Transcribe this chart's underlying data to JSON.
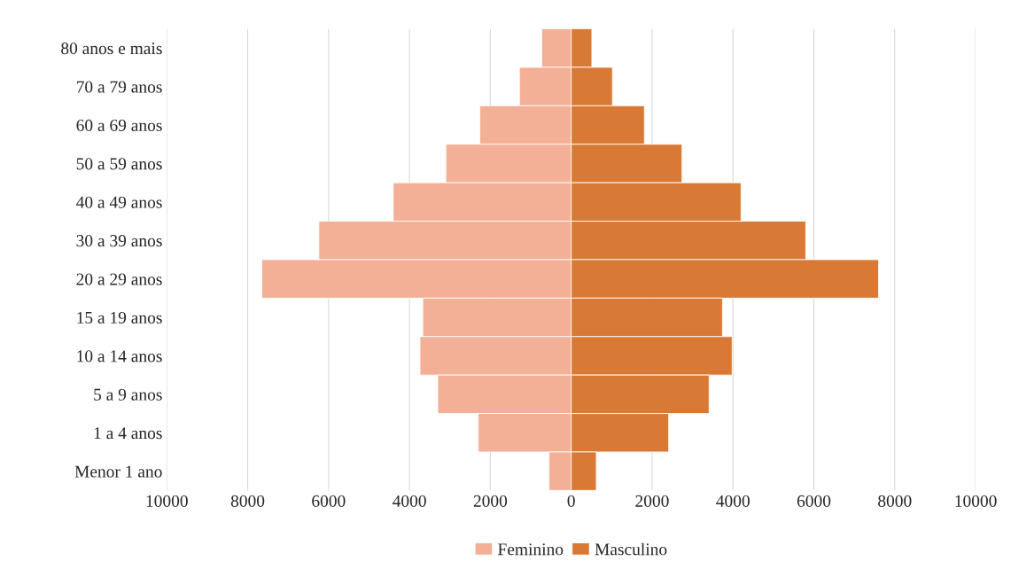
{
  "chart_data": {
    "type": "bar",
    "orientation": "horizontal",
    "stacked": true,
    "categories": [
      "80 anos e mais",
      "70 a 79 anos",
      "60 a 69 anos",
      "50 a 59 anos",
      "40 a 49 anos",
      "30 a 39 anos",
      "20 a 29 anos",
      "15 a 19 anos",
      "10 a 14 anos",
      "5 a 9 anos",
      "1 a 4 anos",
      "Menor 1 ano"
    ],
    "series": [
      {
        "name": "Feminino",
        "color": "#f4b096",
        "values": [
          -730,
          -1280,
          -2260,
          -3100,
          -4400,
          -6240,
          -7650,
          -3670,
          -3740,
          -3300,
          -2300,
          -550
        ]
      },
      {
        "name": "Masculino",
        "color": "#d87a35",
        "values": [
          510,
          1020,
          1810,
          2740,
          4200,
          5800,
          7600,
          3740,
          3980,
          3410,
          2410,
          620
        ]
      }
    ],
    "xlim": [
      -10000,
      10000
    ],
    "xticks": [
      {
        "value": -10000,
        "label": "10000"
      },
      {
        "value": -8000,
        "label": "8000"
      },
      {
        "value": -6000,
        "label": "6000"
      },
      {
        "value": -4000,
        "label": "4000"
      },
      {
        "value": -2000,
        "label": "2000"
      },
      0,
      2000,
      4000,
      6000,
      8000,
      10000
    ],
    "grid": "x",
    "legend": "bottom"
  }
}
